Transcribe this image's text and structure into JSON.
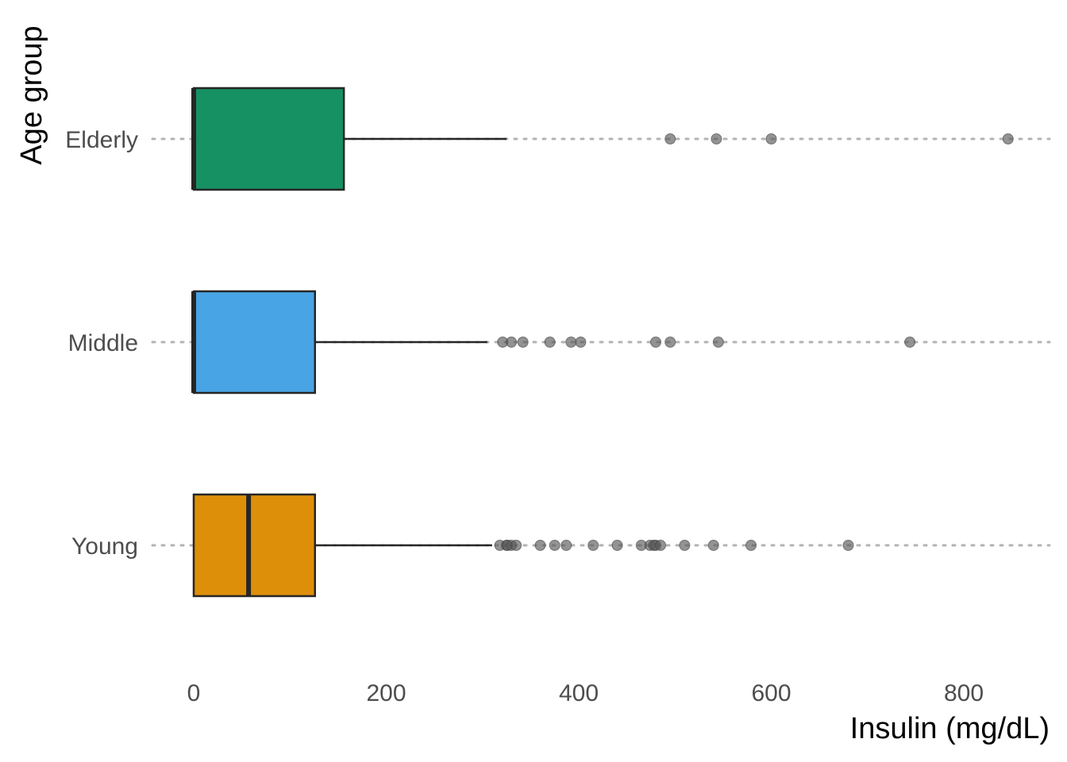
{
  "chart_data": {
    "type": "boxplot",
    "orientation": "horizontal",
    "xlabel": "Insulin (mg/dL)",
    "ylabel": "Age group",
    "xlim": [
      -20,
      890
    ],
    "x_ticks": [
      0,
      200,
      400,
      600,
      800
    ],
    "grid": "dotted horizontal lines at each category",
    "legend": "none",
    "categories": [
      "Young",
      "Middle",
      "Elderly"
    ],
    "series": [
      {
        "name": "Young",
        "color": "#DE8F0A",
        "min": 0,
        "q1": 0,
        "median": 57,
        "q3": 126,
        "whisker_high": 310,
        "outliers": [
          318,
          325,
          326,
          330,
          335,
          360,
          375,
          387,
          415,
          440,
          465,
          474,
          478,
          480,
          485,
          510,
          540,
          579,
          680
        ]
      },
      {
        "name": "Middle",
        "color": "#48A4E4",
        "min": 0,
        "q1": 0,
        "median": 0,
        "q3": 126,
        "whisker_high": 305,
        "outliers": [
          321,
          330,
          342,
          370,
          392,
          402,
          480,
          495,
          545,
          744
        ]
      },
      {
        "name": "Elderly",
        "color": "#169163",
        "min": 0,
        "q1": 0,
        "median": 0,
        "q3": 156,
        "whisker_high": 325,
        "outliers": [
          495,
          543,
          600,
          846
        ]
      }
    ]
  }
}
